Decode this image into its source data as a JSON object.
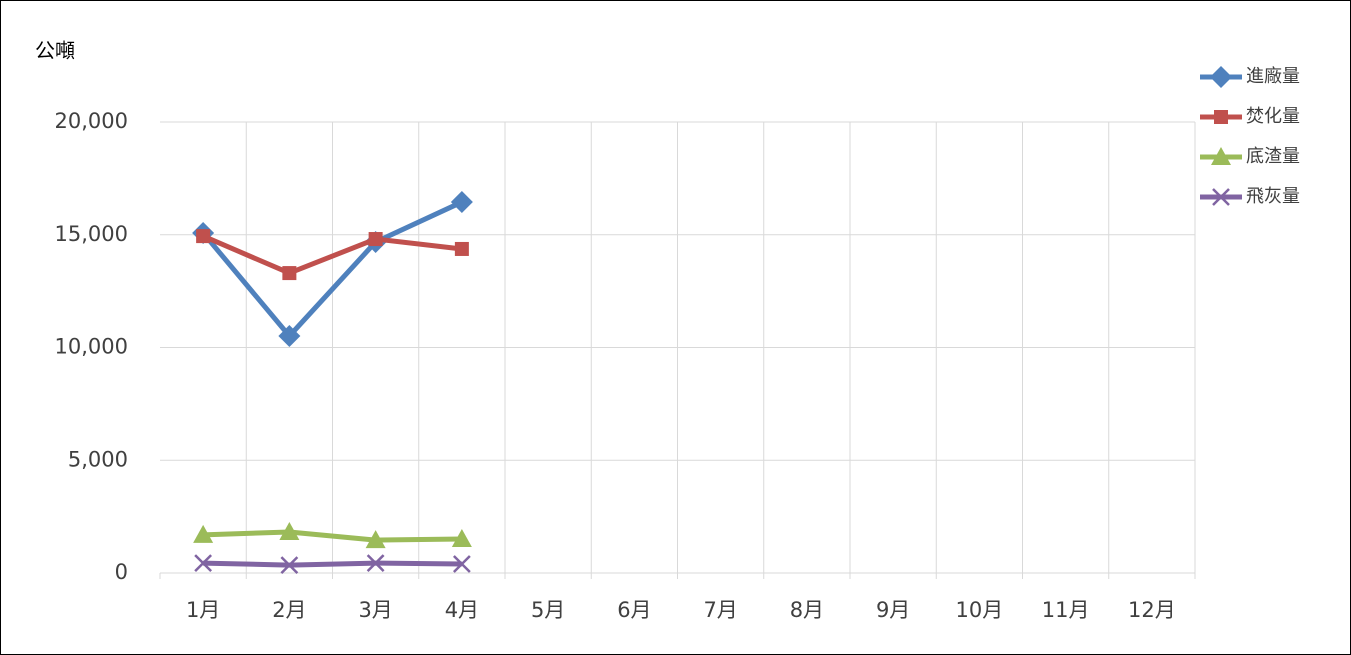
{
  "chart_data": {
    "type": "line",
    "y_axis_label": "公噸",
    "categories": [
      "1月",
      "2月",
      "3月",
      "4月",
      "5月",
      "6月",
      "7月",
      "8月",
      "9月",
      "10月",
      "11月",
      "12月"
    ],
    "series": [
      {
        "name": "進廠量",
        "color": "#4F81BD",
        "marker": "diamond",
        "values": [
          15080,
          10510,
          14680,
          16450,
          null,
          null,
          null,
          null,
          null,
          null,
          null,
          null
        ]
      },
      {
        "name": "焚化量",
        "color": "#C0504D",
        "marker": "square",
        "values": [
          14940,
          13300,
          14810,
          14370,
          null,
          null,
          null,
          null,
          null,
          null,
          null,
          null
        ]
      },
      {
        "name": "底渣量",
        "color": "#9BBB59",
        "marker": "triangle",
        "values": [
          1690,
          1820,
          1460,
          1510,
          null,
          null,
          null,
          null,
          null,
          null,
          null,
          null
        ]
      },
      {
        "name": "飛灰量",
        "color": "#8064A2",
        "marker": "x",
        "values": [
          440,
          350,
          440,
          400,
          null,
          null,
          null,
          null,
          null,
          null,
          null,
          null
        ]
      }
    ],
    "ylim": [
      0,
      20000
    ],
    "yticks": [
      0,
      {
        "value": 5000,
        "label": "5,000"
      },
      {
        "value": 10000,
        "label": "10,000"
      },
      {
        "value": 15000,
        "label": "15,000"
      },
      {
        "value": 20000,
        "label": "20,000"
      }
    ],
    "grid": true,
    "legend": "right"
  }
}
